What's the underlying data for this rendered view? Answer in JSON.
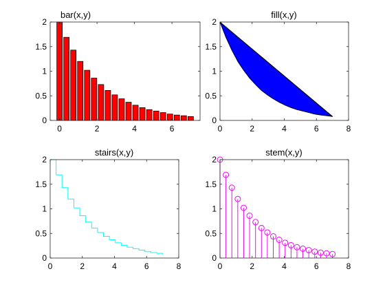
{
  "chart_data": [
    {
      "type": "bar",
      "title": "bar(x,y)",
      "xlabel": "",
      "ylabel": "",
      "xlim": [
        -0.5,
        7.5
      ],
      "ylim": [
        0,
        2
      ],
      "xticks": [
        0,
        2,
        4,
        6
      ],
      "yticks": [
        0,
        0.5,
        1,
        1.5,
        2
      ],
      "grid": false,
      "color": "#ff0000",
      "edge_color": "#000000",
      "x": [
        0,
        0.368,
        0.737,
        1.105,
        1.474,
        1.842,
        2.211,
        2.579,
        2.947,
        3.316,
        3.684,
        4.053,
        4.421,
        4.789,
        5.158,
        5.526,
        5.895,
        6.263,
        6.632,
        7.0
      ],
      "values": [
        2.0,
        1.69,
        1.43,
        1.2,
        1.02,
        0.86,
        0.73,
        0.61,
        0.52,
        0.44,
        0.37,
        0.31,
        0.26,
        0.22,
        0.19,
        0.16,
        0.13,
        0.11,
        0.096,
        0.08
      ]
    },
    {
      "type": "area",
      "title": "fill(x,y)",
      "xlabel": "",
      "ylabel": "",
      "xlim": [
        0,
        8
      ],
      "ylim": [
        0,
        2
      ],
      "xticks": [
        0,
        2,
        4,
        6,
        8
      ],
      "yticks": [
        0,
        0.5,
        1,
        1.5,
        2
      ],
      "grid": false,
      "color": "#0000ff",
      "edge_color": "#000000",
      "x": [
        0,
        0.368,
        0.737,
        1.105,
        1.474,
        1.842,
        2.211,
        2.579,
        2.947,
        3.316,
        3.684,
        4.053,
        4.421,
        4.789,
        5.158,
        5.526,
        5.895,
        6.263,
        6.632,
        7.0
      ],
      "values": [
        2.0,
        1.69,
        1.43,
        1.2,
        1.02,
        0.86,
        0.73,
        0.61,
        0.52,
        0.44,
        0.37,
        0.31,
        0.26,
        0.22,
        0.19,
        0.16,
        0.13,
        0.11,
        0.096,
        0.08
      ]
    },
    {
      "type": "line",
      "title": "stairs(x,y)",
      "xlabel": "",
      "ylabel": "",
      "xlim": [
        0,
        8
      ],
      "ylim": [
        0,
        2
      ],
      "xticks": [
        0,
        2,
        4,
        6,
        8
      ],
      "yticks": [
        0,
        0.5,
        1,
        1.5,
        2
      ],
      "grid": false,
      "color": "#00ffff",
      "x": [
        0,
        0.368,
        0.737,
        1.105,
        1.474,
        1.842,
        2.211,
        2.579,
        2.947,
        3.316,
        3.684,
        4.053,
        4.421,
        4.789,
        5.158,
        5.526,
        5.895,
        6.263,
        6.632,
        7.0
      ],
      "values": [
        2.0,
        1.69,
        1.43,
        1.2,
        1.02,
        0.86,
        0.73,
        0.61,
        0.52,
        0.44,
        0.37,
        0.31,
        0.26,
        0.22,
        0.19,
        0.16,
        0.13,
        0.11,
        0.096,
        0.08
      ]
    },
    {
      "type": "scatter",
      "title": "stem(x,y)",
      "xlabel": "",
      "ylabel": "",
      "xlim": [
        0,
        8
      ],
      "ylim": [
        0,
        2
      ],
      "xticks": [
        0,
        2,
        4,
        6,
        8
      ],
      "yticks": [
        0,
        0.5,
        1,
        1.5,
        2
      ],
      "grid": false,
      "color": "#ff00ff",
      "x": [
        0,
        0.368,
        0.737,
        1.105,
        1.474,
        1.842,
        2.211,
        2.579,
        2.947,
        3.316,
        3.684,
        4.053,
        4.421,
        4.789,
        5.158,
        5.526,
        5.895,
        6.263,
        6.632,
        7.0
      ],
      "values": [
        2.0,
        1.69,
        1.43,
        1.2,
        1.02,
        0.86,
        0.73,
        0.61,
        0.52,
        0.44,
        0.37,
        0.31,
        0.26,
        0.22,
        0.19,
        0.16,
        0.13,
        0.11,
        0.096,
        0.08
      ]
    }
  ]
}
